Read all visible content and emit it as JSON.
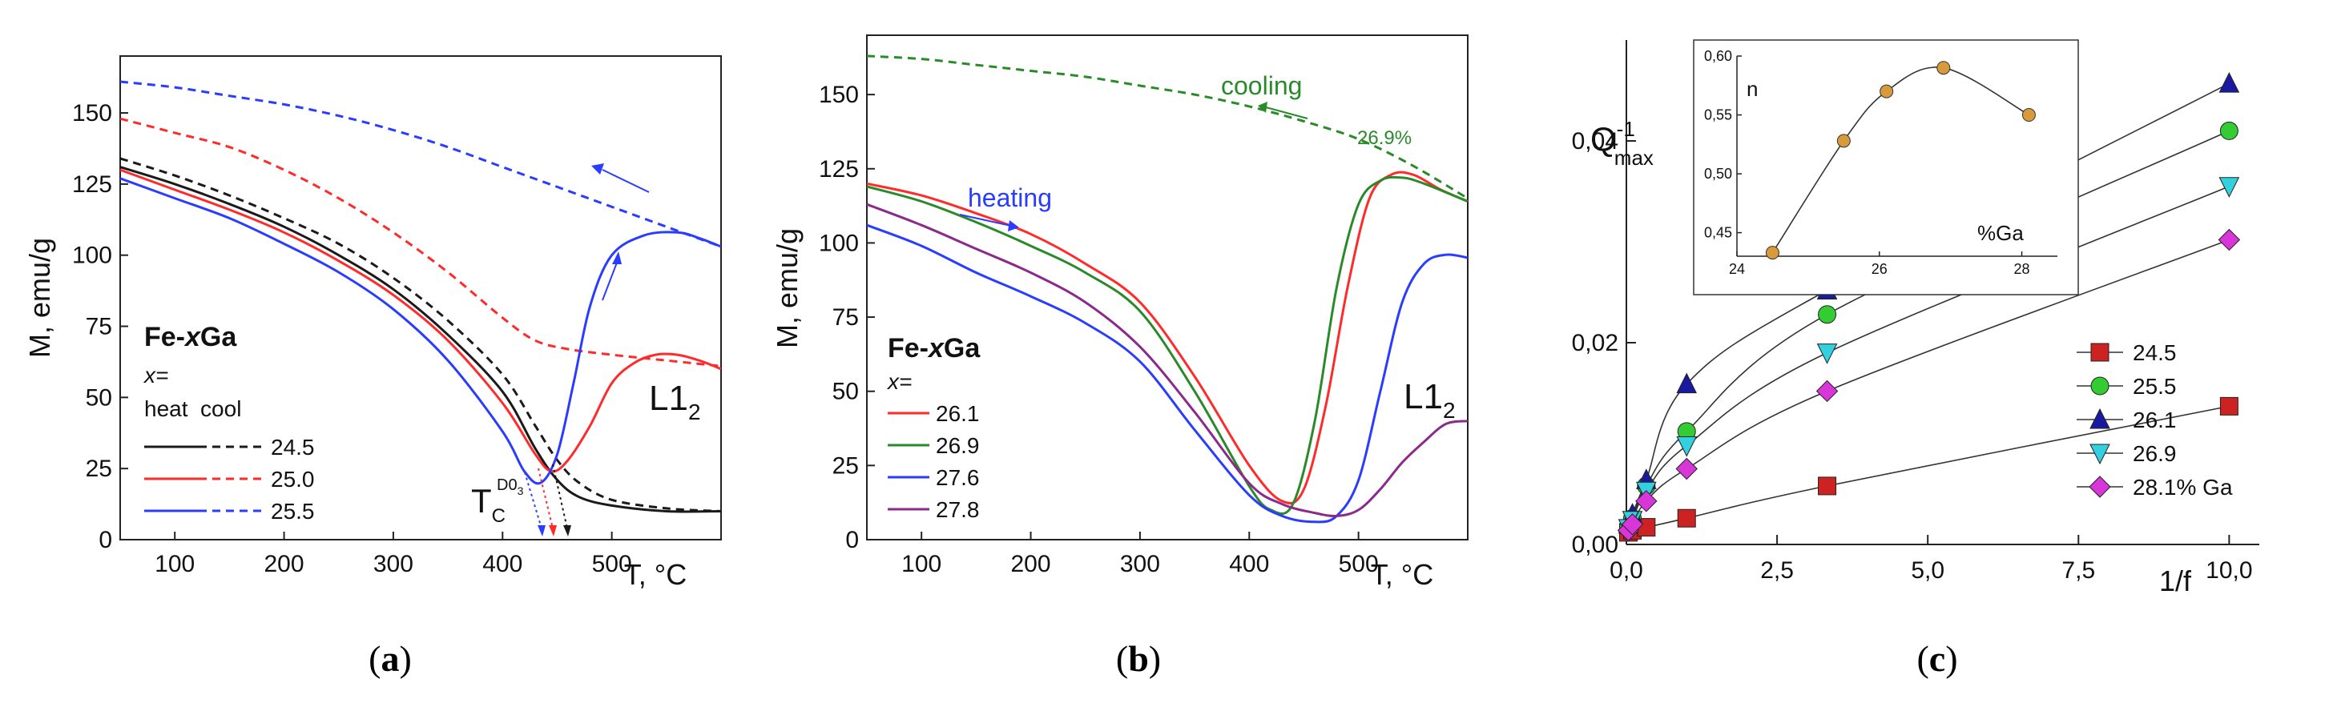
{
  "colors": {
    "black": "#1a1a1a",
    "red": "#ff2a2a",
    "blue": "#2a3cff",
    "green": "#2a8a2a",
    "purple": "#8a2a8a",
    "cyan": "#33d0e0",
    "magenta": "#d836d8",
    "bar_red": "#cc2222",
    "bar_green": "#33cc33",
    "bar_blue": "#1a1aa0",
    "orange": "#d89a3a"
  },
  "captions": {
    "a": "(a)",
    "b": "(b)",
    "c": "(c)"
  },
  "chart_data": [
    {
      "id": "a",
      "type": "line",
      "title": "",
      "xlabel": "T, °C",
      "ylabel": "M, emu/g",
      "xlim": [
        50,
        600
      ],
      "ylim": [
        0,
        170
      ],
      "xticks": [
        100,
        200,
        300,
        400,
        500
      ],
      "yticks": [
        0,
        25,
        50,
        75,
        100,
        125,
        150
      ],
      "legend": {
        "title": "Fe-xGa",
        "title_prefix": "Fe-",
        "title_x": "x",
        "title_suffix": "Ga",
        "subtitle": "x=",
        "header": "heat  cool",
        "entries": [
          "24.5",
          "25.0",
          "25.5"
        ]
      },
      "annotations": {
        "phase": "L1",
        "phase_sub": "2",
        "tc_main": "T",
        "tc_sub": "C",
        "tc_sup": "D0",
        "tc_supsub": "3"
      },
      "series": [
        {
          "name": "24.5 heat",
          "color": "black",
          "dash": false,
          "x": [
            50,
            100,
            150,
            200,
            250,
            300,
            350,
            400,
            430,
            450,
            470,
            500,
            550,
            600
          ],
          "y": [
            131,
            125,
            118,
            110,
            100,
            88,
            72,
            52,
            32,
            21,
            15,
            12,
            10,
            10
          ]
        },
        {
          "name": "24.5 cool",
          "color": "black",
          "dash": true,
          "x": [
            50,
            100,
            150,
            200,
            250,
            300,
            350,
            400,
            430,
            450,
            470,
            500,
            550,
            600
          ],
          "y": [
            134,
            128,
            121,
            113,
            104,
            92,
            77,
            58,
            40,
            28,
            20,
            14,
            11,
            10
          ]
        },
        {
          "name": "25.0 heat",
          "color": "red",
          "dash": false,
          "x": [
            50,
            100,
            150,
            200,
            250,
            300,
            350,
            400,
            430,
            445,
            460,
            480,
            500,
            520,
            540,
            560,
            580,
            600
          ],
          "y": [
            130,
            123,
            116,
            108,
            98,
            86,
            70,
            48,
            30,
            24,
            28,
            40,
            55,
            62,
            65,
            65,
            63,
            60
          ]
        },
        {
          "name": "25.0 cool",
          "color": "red",
          "dash": true,
          "x": [
            50,
            100,
            150,
            200,
            250,
            300,
            350,
            400,
            430,
            460,
            500,
            550,
            600
          ],
          "y": [
            148,
            143,
            138,
            130,
            120,
            108,
            94,
            78,
            70,
            67,
            65,
            63,
            61
          ]
        },
        {
          "name": "25.5 heat",
          "color": "blue",
          "dash": false,
          "x": [
            50,
            100,
            150,
            200,
            250,
            300,
            350,
            400,
            420,
            435,
            450,
            465,
            480,
            500,
            530,
            560,
            580,
            600
          ],
          "y": [
            127,
            120,
            113,
            104,
            94,
            81,
            63,
            38,
            24,
            20,
            30,
            55,
            82,
            100,
            107,
            108,
            106,
            103
          ]
        },
        {
          "name": "25.5 cool",
          "color": "blue",
          "dash": true,
          "x": [
            50,
            100,
            150,
            200,
            250,
            300,
            350,
            400,
            450,
            500,
            550,
            600
          ],
          "y": [
            161,
            159,
            156,
            153,
            149,
            144,
            138,
            131,
            124,
            117,
            110,
            103
          ]
        }
      ]
    },
    {
      "id": "b",
      "type": "line",
      "title": "",
      "xlabel": "T, °C",
      "ylabel": "M, emu/g",
      "xlim": [
        50,
        600
      ],
      "ylim": [
        0,
        170
      ],
      "xticks": [
        100,
        200,
        300,
        400,
        500
      ],
      "yticks": [
        0,
        25,
        50,
        75,
        100,
        125,
        150
      ],
      "legend": {
        "title": "Fe-xGa",
        "title_prefix": "Fe-",
        "title_x": "x",
        "title_suffix": "Ga",
        "subtitle": "x=",
        "entries": [
          "26.1",
          "26.9",
          "27.6",
          "27.8"
        ]
      },
      "annotations": {
        "phase": "L1",
        "phase_sub": "2",
        "heating": "heating",
        "cooling": "cooling",
        "cool_pct": "26.9%"
      },
      "series": [
        {
          "name": "26.1",
          "color": "red",
          "dash": false,
          "x": [
            50,
            100,
            150,
            200,
            250,
            300,
            350,
            400,
            430,
            450,
            470,
            490,
            510,
            530,
            550,
            575,
            600
          ],
          "y": [
            120,
            116,
            110,
            103,
            93,
            80,
            55,
            25,
            13,
            17,
            45,
            85,
            115,
            123,
            123,
            118,
            114
          ]
        },
        {
          "name": "26.9",
          "color": "green",
          "dash": false,
          "x": [
            50,
            100,
            150,
            200,
            250,
            300,
            350,
            400,
            420,
            440,
            460,
            480,
            500,
            520,
            540,
            560,
            600
          ],
          "y": [
            119,
            114,
            107,
            99,
            90,
            77,
            50,
            18,
            10,
            12,
            40,
            85,
            113,
            121,
            122,
            120,
            114
          ]
        },
        {
          "name": "27.6",
          "color": "blue",
          "dash": false,
          "x": [
            50,
            100,
            150,
            200,
            250,
            300,
            350,
            400,
            430,
            460,
            480,
            500,
            520,
            540,
            560,
            580,
            600
          ],
          "y": [
            106,
            99,
            90,
            82,
            73,
            60,
            37,
            15,
            8,
            6,
            8,
            20,
            50,
            80,
            93,
            96,
            95
          ]
        },
        {
          "name": "27.8",
          "color": "purple",
          "dash": false,
          "x": [
            50,
            100,
            150,
            200,
            250,
            300,
            350,
            400,
            430,
            460,
            480,
            500,
            520,
            540,
            560,
            580,
            600
          ],
          "y": [
            113,
            106,
            98,
            90,
            80,
            65,
            43,
            19,
            12,
            9,
            8,
            10,
            17,
            26,
            33,
            39,
            40
          ]
        },
        {
          "name": "26.9 cooling",
          "color": "green",
          "dash": true,
          "x": [
            50,
            100,
            150,
            200,
            250,
            300,
            350,
            400,
            450,
            500,
            550,
            600
          ],
          "y": [
            163,
            162,
            160,
            158,
            156,
            153,
            150,
            146,
            141,
            135,
            126,
            115
          ]
        }
      ]
    },
    {
      "id": "c",
      "type": "scatter",
      "title": "",
      "xlabel": "1/f",
      "ylabel": "Q",
      "ylabel_sup": "-1",
      "ylabel_sub": "max",
      "xlim": [
        0,
        10.5
      ],
      "ylim": [
        0,
        0.05
      ],
      "xticks": [
        "0,0",
        "2,5",
        "5,0",
        "7,5",
        "10,0"
      ],
      "xtick_values": [
        0,
        2.5,
        5.0,
        7.5,
        10.0
      ],
      "yticks": [
        "0,00",
        "0,02",
        "0,04"
      ],
      "ytick_values": [
        0,
        0.02,
        0.04
      ],
      "legend": {
        "entries": [
          "24.5",
          "25.5",
          "26.1",
          "26.9",
          "28.1% Ga"
        ]
      },
      "series": [
        {
          "name": "24.5",
          "marker": "square",
          "color": "bar_red",
          "x": [
            0.033,
            0.1,
            0.33,
            1.0,
            3.33,
            10.0
          ],
          "y": [
            0.0012,
            0.0014,
            0.0017,
            0.0026,
            0.0058,
            0.0137
          ]
        },
        {
          "name": "25.5",
          "marker": "circle",
          "color": "bar_green",
          "x": [
            0.033,
            0.1,
            0.33,
            1.0,
            3.33,
            10.0
          ],
          "y": [
            0.0017,
            0.0026,
            0.0058,
            0.0112,
            0.0228,
            0.041
          ]
        },
        {
          "name": "26.1",
          "marker": "triangle-up",
          "color": "bar_blue",
          "x": [
            0.033,
            0.1,
            0.33,
            1.0,
            3.33,
            10.0
          ],
          "y": [
            0.002,
            0.003,
            0.0064,
            0.0159,
            0.0252,
            0.0457
          ]
        },
        {
          "name": "26.9",
          "marker": "triangle-down",
          "color": "cyan",
          "x": [
            0.033,
            0.1,
            0.33,
            1.0,
            3.33,
            10.0
          ],
          "y": [
            0.0016,
            0.0024,
            0.0053,
            0.0098,
            0.019,
            0.0355
          ]
        },
        {
          "name": "28.1% Ga",
          "marker": "diamond",
          "color": "magenta",
          "x": [
            0.033,
            0.1,
            0.33,
            1.0,
            3.33,
            10.0
          ],
          "y": [
            0.0014,
            0.002,
            0.0043,
            0.0075,
            0.0152,
            0.0302
          ]
        }
      ],
      "inset": {
        "type": "line",
        "ylabel": "n",
        "xlabel": "%Ga",
        "xlim": [
          24,
          28.5
        ],
        "ylim": [
          0.43,
          0.6
        ],
        "xticks": [
          24,
          26,
          28
        ],
        "yticks": [
          "0,45",
          "0,50",
          "0,55",
          "0,60"
        ],
        "ytick_values": [
          0.45,
          0.5,
          0.55,
          0.6
        ],
        "x": [
          24.5,
          25.5,
          26.1,
          26.9,
          28.1
        ],
        "y": [
          0.433,
          0.528,
          0.57,
          0.59,
          0.55
        ]
      }
    }
  ]
}
